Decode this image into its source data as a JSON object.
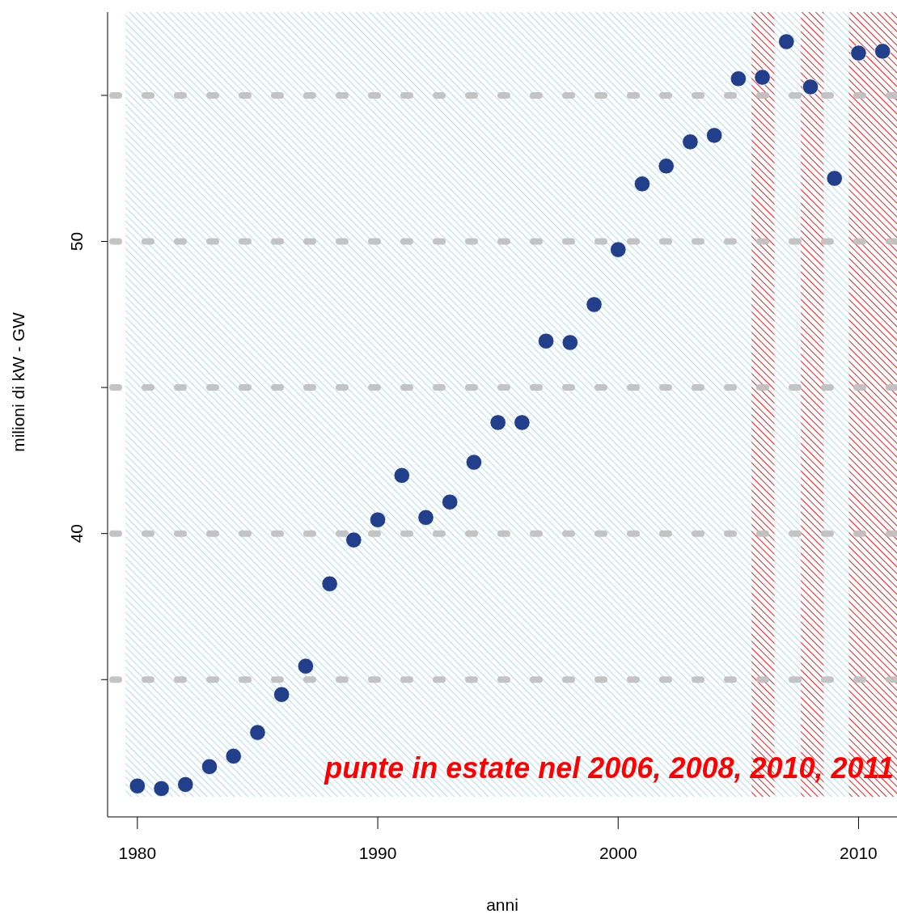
{
  "chart_data": {
    "type": "scatter",
    "xlabel": "anni",
    "ylabel": "milioni di kW - GW",
    "x": [
      1980,
      1981,
      1982,
      1983,
      1984,
      1985,
      1986,
      1987,
      1988,
      1989,
      1990,
      1991,
      1992,
      1993,
      1994,
      1995,
      1996,
      1997,
      1998,
      1999,
      2000,
      2001,
      2002,
      2003,
      2004,
      2005,
      2006,
      2007,
      2008,
      2009,
      2010,
      2011
    ],
    "series": [
      {
        "color": "#223f8c",
        "values": [
          31.36,
          31.27,
          31.41,
          32.02,
          32.38,
          33.19,
          34.49,
          35.46,
          38.28,
          39.78,
          40.47,
          41.99,
          40.55,
          41.08,
          42.44,
          43.8,
          43.8,
          46.59,
          46.54,
          47.84,
          49.72,
          51.97,
          52.58,
          53.41,
          53.63,
          55.57,
          55.62,
          56.84,
          55.29,
          52.16,
          56.45,
          56.51
        ]
      }
    ],
    "marker": "circle",
    "xlim": [
      1978.76,
      2011.6
    ],
    "xticks": [
      1980,
      1990,
      2000,
      2010
    ],
    "ylim": [
      30.3,
      57.85
    ],
    "yticks": [
      {
        "value": 35,
        "label": null
      },
      40,
      {
        "value": 45,
        "label": null
      },
      50,
      {
        "value": 55,
        "label": null
      }
    ],
    "grid": "y",
    "bands": [
      {
        "axis": "x",
        "from": 1979.5,
        "to": 2011.6,
        "label": null,
        "color": "#9fd3e3"
      },
      {
        "axis": "x",
        "from": 2005.55,
        "to": 2006.5,
        "label": null,
        "color": "#ff0000"
      },
      {
        "axis": "x",
        "from": 2007.6,
        "to": 2008.55,
        "label": null,
        "color": "#ff0000"
      },
      {
        "axis": "x",
        "from": 2009.6,
        "to": 2011.6,
        "label": null,
        "color": "#ff0000"
      }
    ],
    "annotations": [
      "punte in estate nel 2006, 2008, 2010, 2011"
    ]
  }
}
